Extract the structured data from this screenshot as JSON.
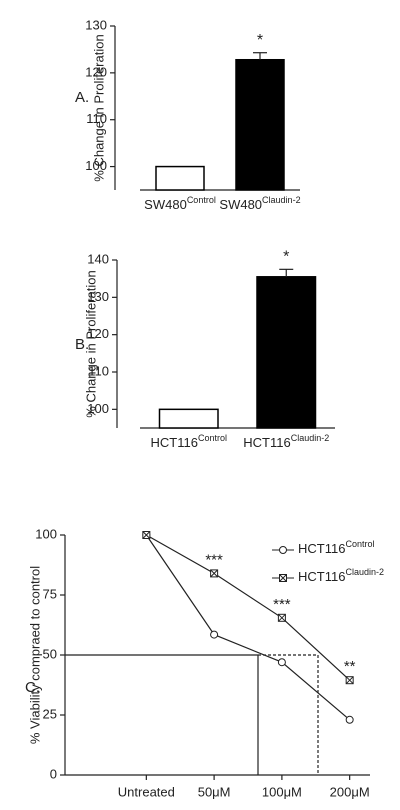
{
  "chart_data": [
    {
      "type": "bar",
      "panel_label": "A.",
      "y_label": "% Change in Proliferation",
      "categories": [
        {
          "text": "SW480",
          "superscript": "Control"
        },
        {
          "text": "SW480",
          "superscript": "Claudin-2"
        }
      ],
      "values": [
        100,
        122.8
      ],
      "errors": [
        null,
        1.5
      ],
      "annotations": [
        null,
        "*"
      ],
      "colors": [
        "#ffffff",
        "#000000"
      ],
      "ylim": [
        95,
        130
      ],
      "yticks": [
        100,
        110,
        120,
        130
      ]
    },
    {
      "type": "bar",
      "panel_label": "B.",
      "y_label": "% Change in Proliferation",
      "categories": [
        {
          "text": "HCT116",
          "superscript": "Control"
        },
        {
          "text": "HCT116",
          "superscript": "Claudin-2"
        }
      ],
      "values": [
        100,
        135.5
      ],
      "errors": [
        null,
        2
      ],
      "annotations": [
        null,
        "*"
      ],
      "colors": [
        "#ffffff",
        "#000000"
      ],
      "ylim": [
        95,
        140
      ],
      "yticks": [
        100,
        110,
        120,
        130,
        140
      ]
    },
    {
      "type": "line",
      "panel_label": "C.",
      "y_label": "% Viability compraed to control",
      "categories": [
        "Untreated",
        "50μM",
        "100μM",
        "200μM"
      ],
      "series": [
        {
          "name": {
            "text": "HCT116",
            "superscript": "Control"
          },
          "marker": "circle",
          "color": "#222222",
          "values": [
            100,
            58.5,
            47,
            23
          ],
          "annotations": [
            null,
            null,
            null,
            null
          ]
        },
        {
          "name": {
            "text": "HCT116",
            "superscript": "Claudin-2"
          },
          "marker": "square-x",
          "color": "#222222",
          "values": [
            100,
            84,
            65.5,
            39.5
          ],
          "annotations": [
            null,
            "***",
            "***",
            "**"
          ]
        }
      ],
      "ylim": [
        0,
        100
      ],
      "yticks": [
        0,
        25,
        50,
        75,
        100
      ]
    }
  ]
}
